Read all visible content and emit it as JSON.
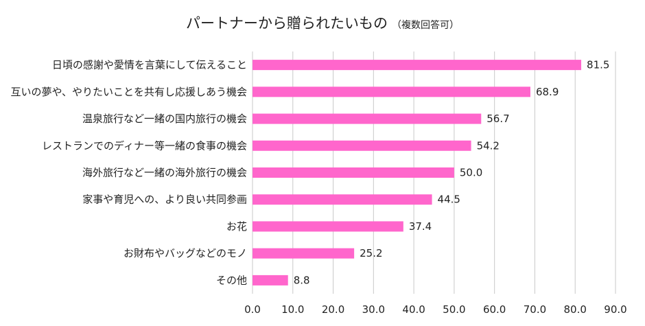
{
  "chart_data": {
    "type": "bar",
    "orientation": "horizontal",
    "title": "パートナーから贈られたいもの",
    "subtitle": "（複数回答可）",
    "categories": [
      "日頃の感謝や愛情を言葉にして伝えること",
      "互いの夢や、やりたいことを共有し応援しあう機会",
      "温泉旅行など一緒の国内旅行の機会",
      "レストランでのディナー等一緒の食事の機会",
      "海外旅行など一緒の海外旅行の機会",
      "家事や育児への、より良い共同参画",
      "お花",
      "お財布やバッグなどのモノ",
      "その他"
    ],
    "values": [
      81.5,
      68.9,
      56.7,
      54.2,
      50.0,
      44.5,
      37.4,
      25.2,
      8.8
    ],
    "value_labels": [
      "81.5",
      "68.9",
      "56.7",
      "54.2",
      "50.0",
      "44.5",
      "37.4",
      "25.2",
      "8.8"
    ],
    "xlim": [
      0,
      90
    ],
    "x_ticks": [
      "0.0",
      "10.0",
      "20.0",
      "30.0",
      "40.0",
      "50.0",
      "60.0",
      "70.0",
      "80.0",
      "90.0"
    ],
    "grid": true,
    "bar_color": "#ff66cc",
    "grid_color": "#c8c8c8"
  }
}
